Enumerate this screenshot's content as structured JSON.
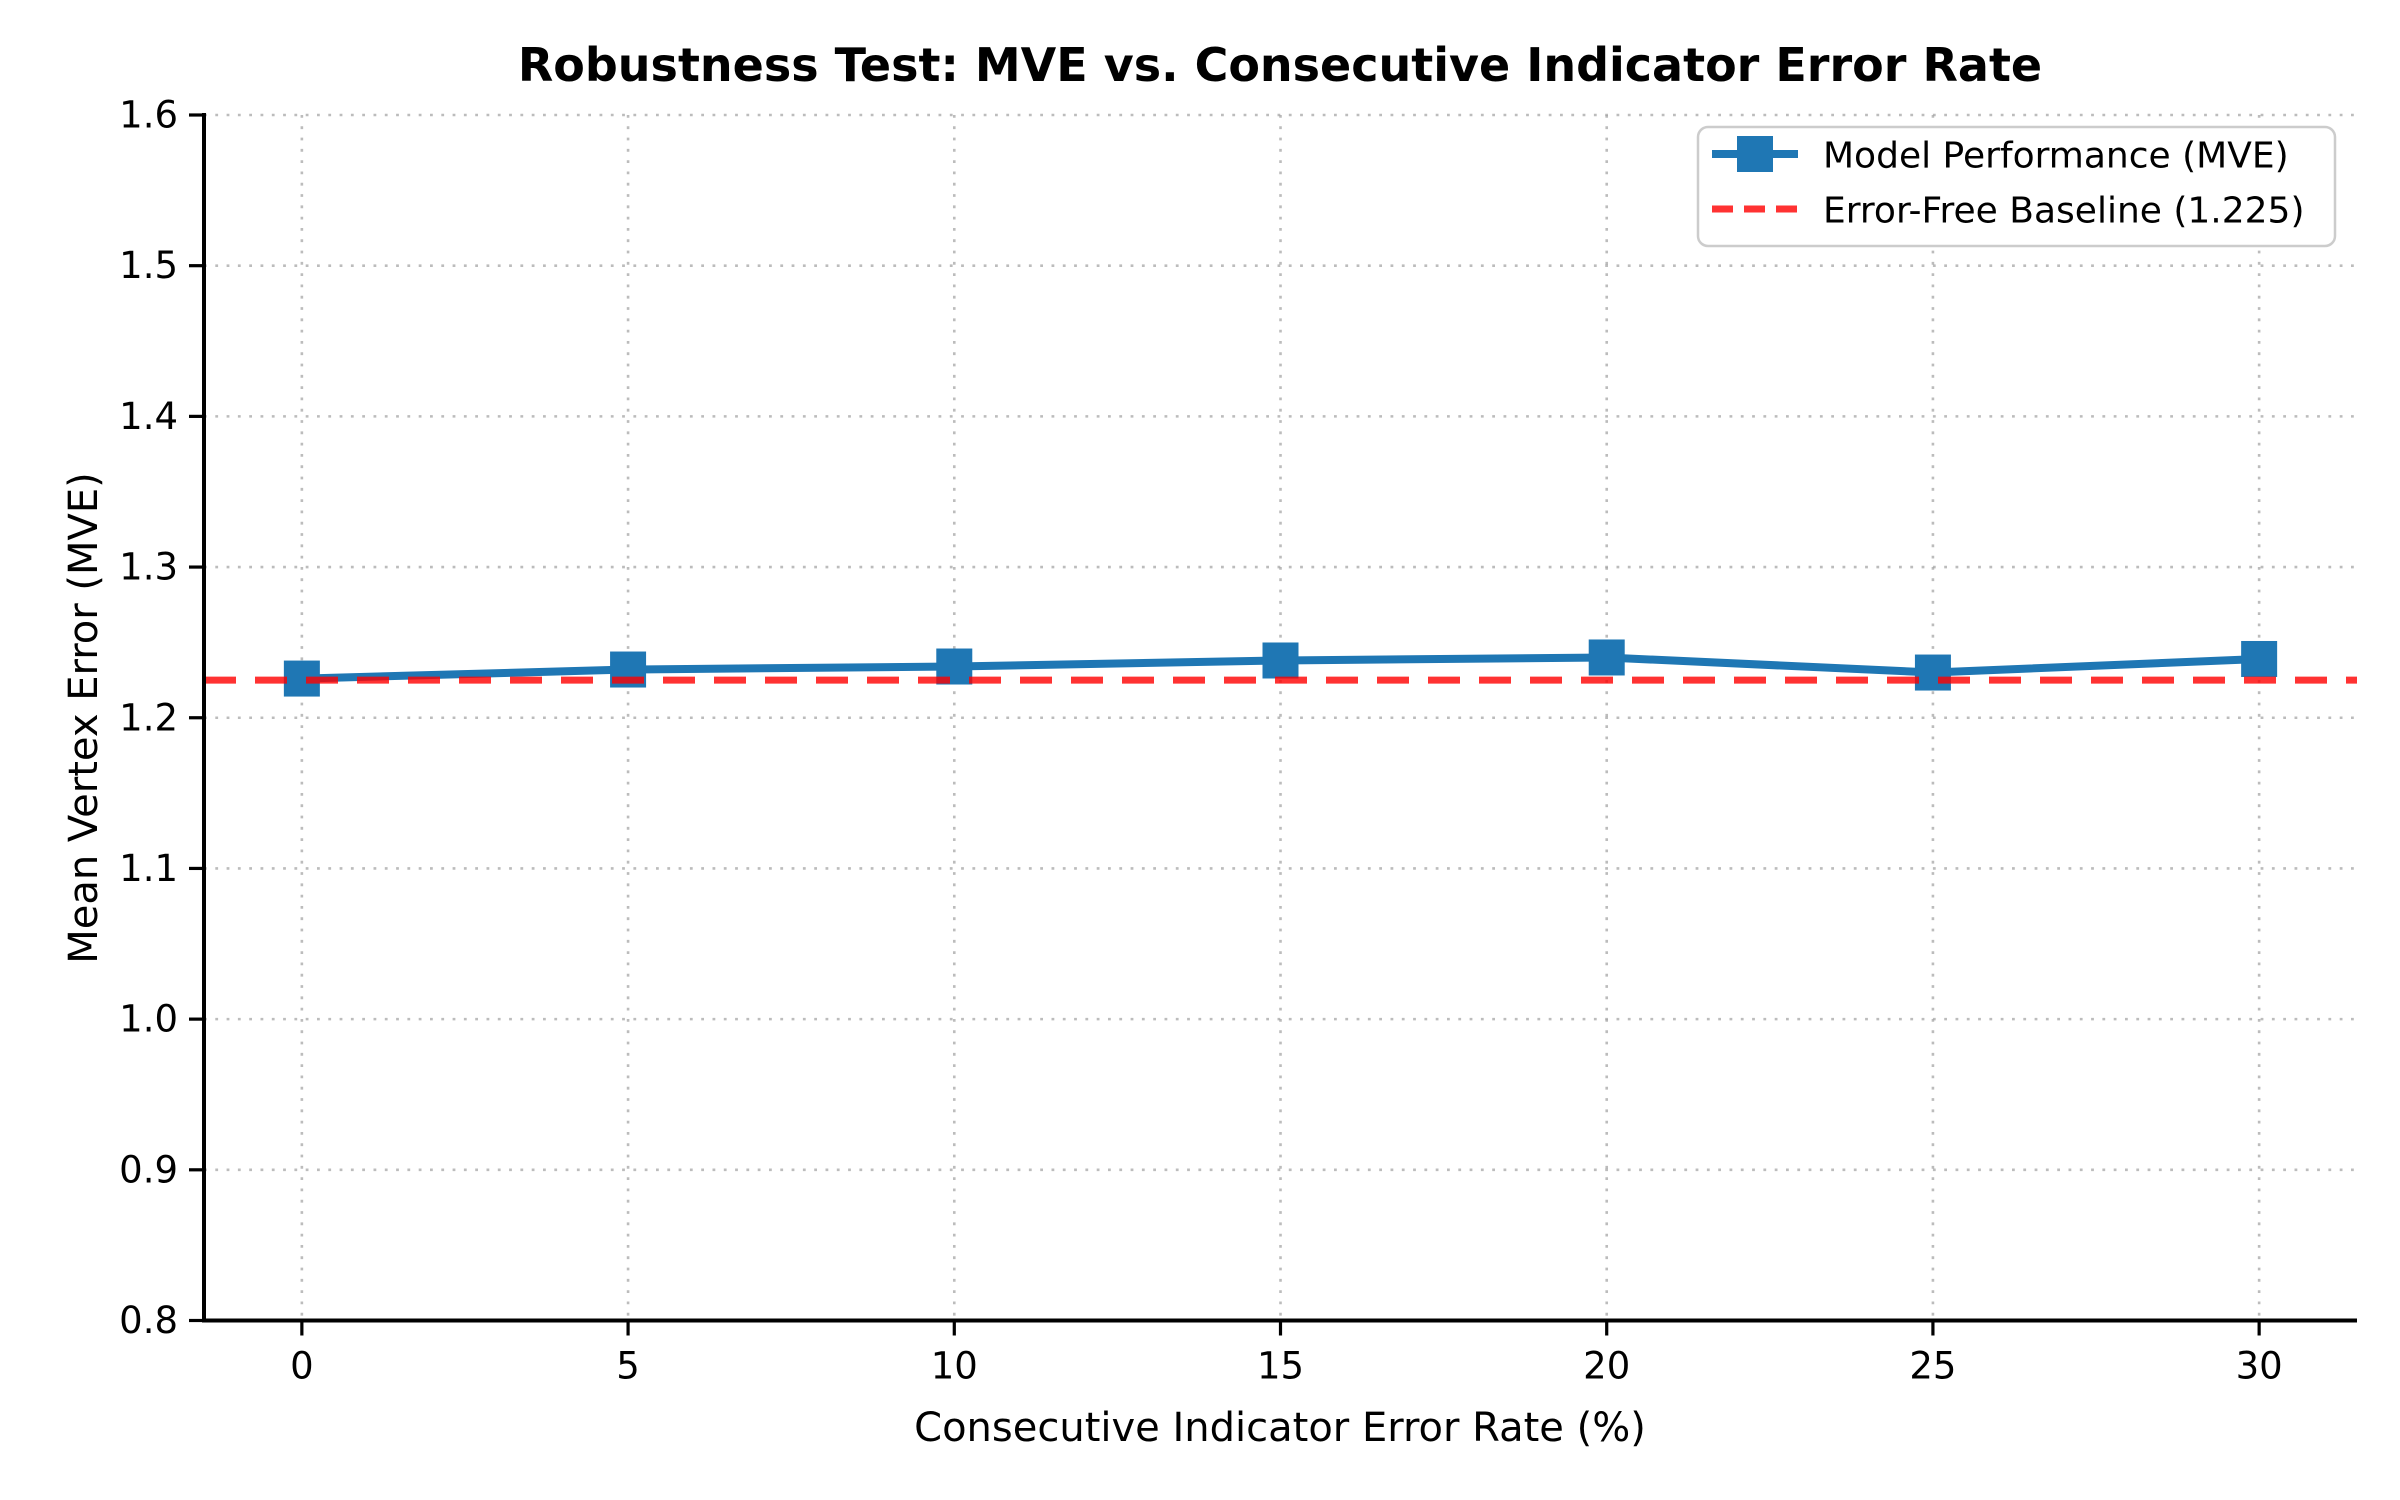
{
  "chart_data": {
    "type": "line",
    "title": "Robustness Test: MVE vs. Consecutive Indicator Error Rate",
    "xlabel": "Consecutive Indicator Error Rate (%)",
    "ylabel": "Mean Vertex Error (MVE)",
    "x": [
      0,
      5,
      10,
      15,
      20,
      25,
      30
    ],
    "series": [
      {
        "name": "Model Performance (MVE)",
        "values": [
          1.226,
          1.232,
          1.234,
          1.238,
          1.24,
          1.23,
          1.239
        ],
        "color": "#1f77b4",
        "marker": "square",
        "line_width": 8,
        "marker_size": 36
      }
    ],
    "baseline": {
      "name": "Error-Free Baseline (1.225)",
      "value": 1.225,
      "color": "#ff0000",
      "opacity": 0.8,
      "line_style": "dashed",
      "line_width": 7
    },
    "xlim": [
      -1.5,
      31.5
    ],
    "ylim": [
      0.8,
      1.6
    ],
    "xtick_labels": [
      "0",
      "5",
      "10",
      "15",
      "20",
      "25",
      "30"
    ],
    "xtick_values": [
      0,
      5,
      10,
      15,
      20,
      25,
      30
    ],
    "ytick_labels": [
      "0.8",
      "0.9",
      "1.0",
      "1.1",
      "1.2",
      "1.3",
      "1.4",
      "1.5",
      "1.6"
    ],
    "ytick_values": [
      0.8,
      0.9,
      1.0,
      1.1,
      1.2,
      1.3,
      1.4,
      1.5,
      1.6
    ],
    "grid": {
      "visible": true,
      "style": "dotted",
      "color": "#a6a6a6"
    },
    "axis_color": "#000000",
    "legend": {
      "position": "upper right",
      "items": [
        "Model Performance (MVE)",
        "Error-Free Baseline (1.225)"
      ]
    }
  }
}
